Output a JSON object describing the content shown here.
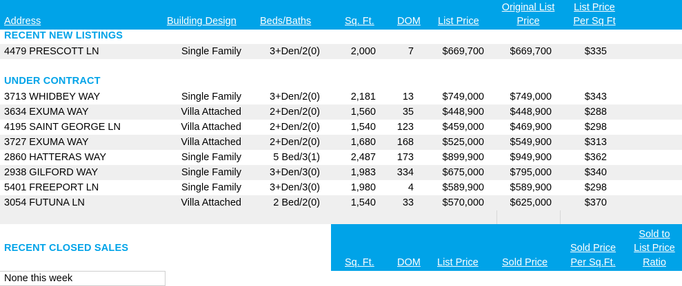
{
  "header": {
    "address": "Address",
    "building_design": "Building Design",
    "beds_baths": "Beds/Baths",
    "sqft": "Sq. Ft.",
    "dom": "DOM",
    "list_price": "List Price",
    "original_list_price": [
      "Original List",
      "Price"
    ],
    "list_price_per_sqft": [
      "List Price",
      "Per Sq Ft"
    ]
  },
  "sections": {
    "new_listings": "RECENT NEW LISTINGS",
    "under_contract": "UNDER CONTRACT",
    "closed_sales": "RECENT CLOSED SALES"
  },
  "new_listings": [
    {
      "address": "4479 PRESCOTT LN",
      "design": "Single Family",
      "beds": "3+Den/2(0)",
      "sqft": "2,000",
      "dom": "7",
      "list": "$669,700",
      "orig": "$669,700",
      "ppsf": "$335"
    }
  ],
  "under_contract": [
    {
      "address": "3713 WHIDBEY WAY",
      "design": "Single Family",
      "beds": "3+Den/2(0)",
      "sqft": "2,181",
      "dom": "13",
      "list": "$749,000",
      "orig": "$749,000",
      "ppsf": "$343"
    },
    {
      "address": "3634 EXUMA WAY",
      "design": "Villa Attached",
      "beds": "2+Den/2(0)",
      "sqft": "1,560",
      "dom": "35",
      "list": "$448,900",
      "orig": "$448,900",
      "ppsf": "$288"
    },
    {
      "address": "4195 SAINT GEORGE LN",
      "design": "Villa Attached",
      "beds": "2+Den/2(0)",
      "sqft": "1,540",
      "dom": "123",
      "list": "$459,000",
      "orig": "$469,900",
      "ppsf": "$298"
    },
    {
      "address": "3727 EXUMA WAY",
      "design": "Villa Attached",
      "beds": "2+Den/2(0)",
      "sqft": "1,680",
      "dom": "168",
      "list": "$525,000",
      "orig": "$549,900",
      "ppsf": "$313"
    },
    {
      "address": "2860 HATTERAS WAY",
      "design": "Single Family",
      "beds": "5 Bed/3(1)",
      "sqft": "2,487",
      "dom": "173",
      "list": "$899,900",
      "orig": "$949,900",
      "ppsf": "$362"
    },
    {
      "address": "2938 GILFORD WAY",
      "design": "Single Family",
      "beds": "3+Den/3(0)",
      "sqft": "1,983",
      "dom": "334",
      "list": "$675,000",
      "orig": "$795,000",
      "ppsf": "$340"
    },
    {
      "address": "5401 FREEPORT LN",
      "design": "Single Family",
      "beds": "3+Den/3(0)",
      "sqft": "1,980",
      "dom": "4",
      "list": "$589,900",
      "orig": "$589,900",
      "ppsf": "$298"
    },
    {
      "address": "3054 FUTUNA LN",
      "design": "Villa Attached",
      "beds": "2 Bed/2(0)",
      "sqft": "1,540",
      "dom": "33",
      "list": "$570,000",
      "orig": "$625,000",
      "ppsf": "$370"
    }
  ],
  "closed_header": {
    "sqft": "Sq. Ft.",
    "dom": "DOM",
    "list_price": "List Price",
    "sold_price": "Sold Price",
    "sold_price_per_sqft": [
      "Sold Price",
      "Per Sq.Ft."
    ],
    "sold_to_list_ratio": [
      "Sold to",
      "List Price",
      "Ratio"
    ]
  },
  "closed_note": "None this week",
  "colors": {
    "accent": "#00a3e8",
    "stripe": "#efefef"
  }
}
